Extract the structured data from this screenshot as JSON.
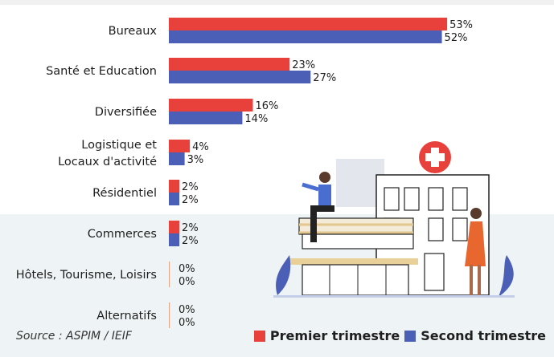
{
  "chart_data": {
    "type": "bar",
    "orientation": "horizontal",
    "categories": [
      [
        "Bureaux"
      ],
      [
        "Santé et Education"
      ],
      [
        "Diversifiée"
      ],
      [
        "Logistique et",
        "Locaux d'activité"
      ],
      [
        "Résidentiel"
      ],
      [
        "Commerces"
      ],
      [
        "Hôtels, Tourisme, Loisirs"
      ],
      [
        "Alternatifs"
      ]
    ],
    "series": [
      {
        "name": "Premier trimestre",
        "color": "#e8413b",
        "values": [
          53,
          23,
          16,
          4,
          2,
          2,
          0,
          0
        ]
      },
      {
        "name": "Second trimestre",
        "color": "#4a5fb5",
        "values": [
          52,
          27,
          14,
          3,
          2,
          2,
          0,
          0
        ]
      }
    ],
    "value_suffix": "%",
    "legend_placement": "bottom-right",
    "grid": false,
    "axes_visible": false
  },
  "source": "Source : ASPIM / IEIF"
}
